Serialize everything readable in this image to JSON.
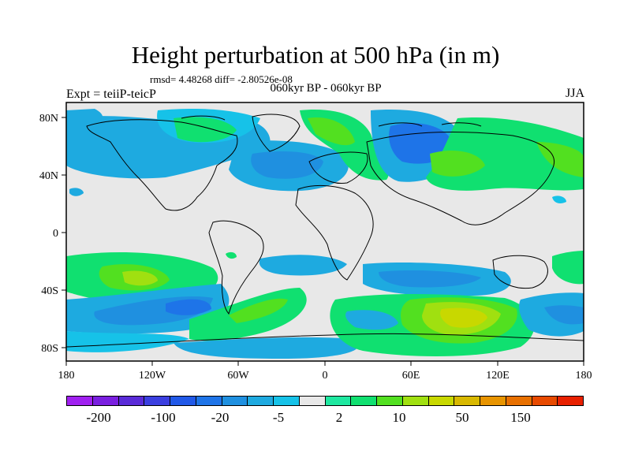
{
  "title": "Height perturbation at 500 hPa (in m)",
  "stats": "rmsd= 4.48268 diff= -2.80526e-08",
  "subtitle": "060kyr BP - 060kyr BP",
  "left_label": "Expt = teiiP-teicP",
  "right_label": "JJA",
  "map": {
    "lon_ticks": [
      "180",
      "120W",
      "60W",
      "0",
      "60E",
      "120E",
      "180"
    ],
    "lat_ticks": [
      "80N",
      "40N",
      "0",
      "40S",
      "80S"
    ],
    "background_color": "#e8e8e8"
  },
  "colorbar": {
    "colors": [
      "#a020f0",
      "#7a1fe0",
      "#5a2bd8",
      "#3b3fe0",
      "#2159e8",
      "#1e74e8",
      "#1f90e0",
      "#1eaae0",
      "#16c2e8",
      "#e8e8e8",
      "#1ee8a0",
      "#10e070",
      "#52e020",
      "#a0e010",
      "#c8d800",
      "#d8b800",
      "#e89400",
      "#e87000",
      "#e84a00",
      "#e82000"
    ],
    "labels": [
      "-200",
      "-100",
      "-20",
      "-5",
      "2",
      "10",
      "50",
      "150"
    ]
  }
}
